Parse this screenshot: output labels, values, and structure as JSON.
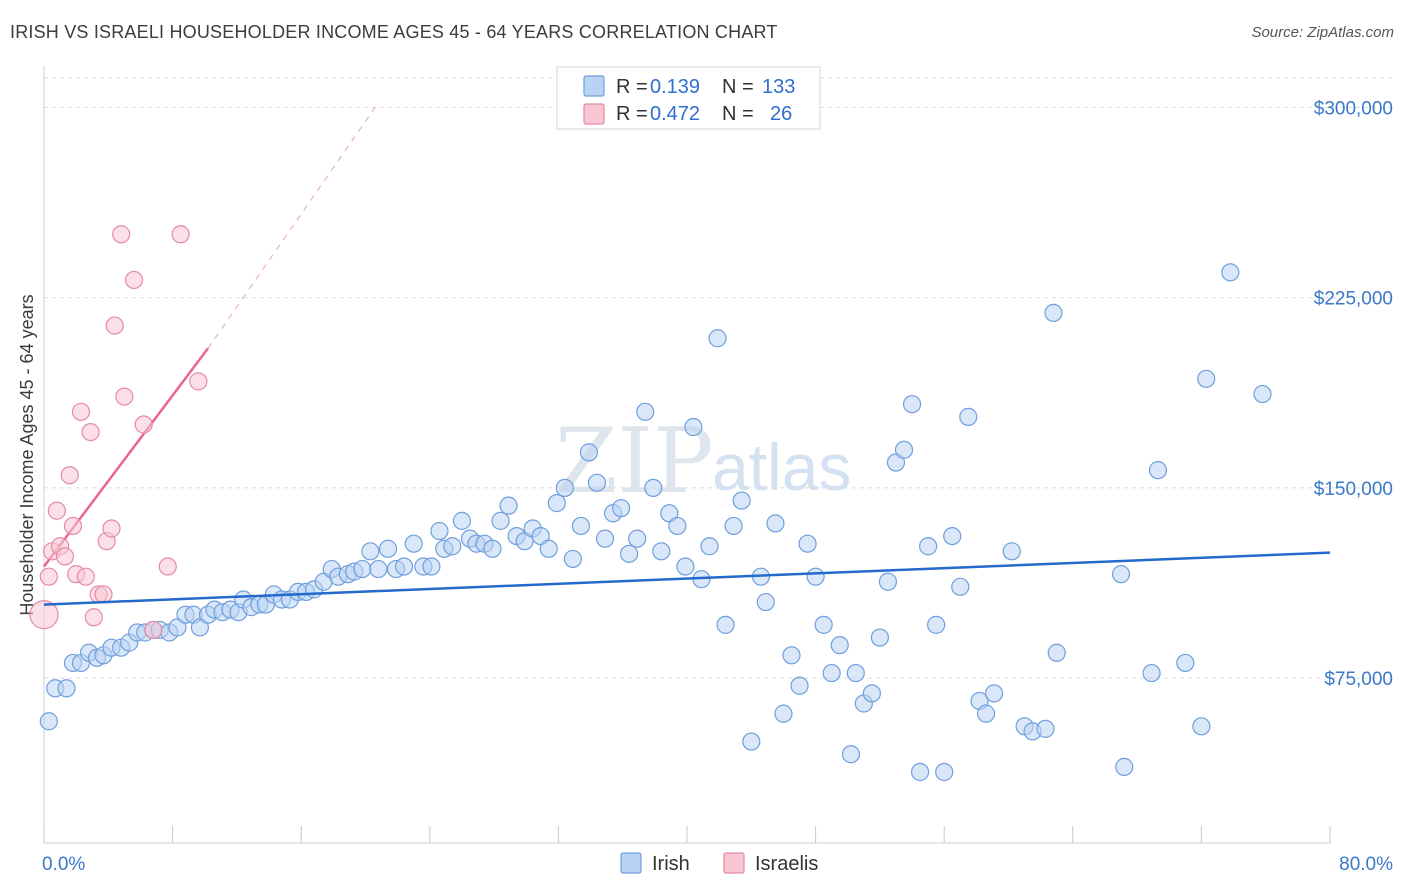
{
  "title": "IRISH VS ISRAELI HOUSEHOLDER INCOME AGES 45 - 64 YEARS CORRELATION CHART",
  "source": "Source: ZipAtlas.com",
  "watermark": {
    "part1": "ZIP",
    "part2": "atlas"
  },
  "colors": {
    "irish_fill": "#b9d3f2",
    "irish_stroke": "#6f9fdd",
    "irish_line": "#2469cc",
    "israeli_fill": "#f8c6d3",
    "israeli_stroke": "#e58aa6",
    "israeli_line": "#e8668f",
    "tick_text": "#3a78c9",
    "grid": "#dcdcdc"
  },
  "legend": {
    "rows": [
      {
        "r_label": "R =",
        "r_value": "0.139",
        "n_label": "N =",
        "n_value": "133"
      },
      {
        "r_label": "R =",
        "r_value": "0.472",
        "n_label": "N =",
        "n_value": "26"
      }
    ]
  },
  "bottom_legend": [
    "Irish",
    "Israelis"
  ],
  "chart_data": {
    "type": "scatter",
    "title": "IRISH VS ISRAELI HOUSEHOLDER INCOME AGES 45 - 64 YEARS CORRELATION CHART",
    "xlabel": "",
    "ylabel": "Householder Income Ages 45 - 64 years",
    "xlim": [
      0,
      80
    ],
    "ylim": [
      10000,
      312000
    ],
    "x_tick_labels": [
      "0.0%",
      "80.0%"
    ],
    "y_ticks": [
      75000,
      150000,
      225000,
      300000
    ],
    "y_tick_labels": [
      "$75,000",
      "$150,000",
      "$225,000",
      "$300,000"
    ],
    "grid": true,
    "legend_position": "top-center",
    "series": [
      {
        "name": "Irish",
        "trend": {
          "x": [
            0,
            80
          ],
          "y": [
            104000,
            124500
          ]
        },
        "points": [
          [
            0.3,
            58000
          ],
          [
            0.7,
            71000
          ],
          [
            1.4,
            71000
          ],
          [
            1.8,
            81000
          ],
          [
            2.3,
            81000
          ],
          [
            2.8,
            85000
          ],
          [
            3.3,
            83000
          ],
          [
            3.7,
            84000
          ],
          [
            4.2,
            87000
          ],
          [
            4.8,
            87000
          ],
          [
            5.3,
            89000
          ],
          [
            5.8,
            93000
          ],
          [
            6.3,
            93000
          ],
          [
            6.8,
            94000
          ],
          [
            7.2,
            94000
          ],
          [
            7.8,
            93000
          ],
          [
            8.3,
            95000
          ],
          [
            8.8,
            100000
          ],
          [
            9.3,
            100000
          ],
          [
            9.7,
            95000
          ],
          [
            10.2,
            100000
          ],
          [
            10.6,
            102000
          ],
          [
            11.1,
            101000
          ],
          [
            11.6,
            102000
          ],
          [
            12.1,
            101000
          ],
          [
            12.4,
            106000
          ],
          [
            12.9,
            103000
          ],
          [
            13.4,
            104000
          ],
          [
            13.8,
            104000
          ],
          [
            14.3,
            108000
          ],
          [
            14.8,
            106000
          ],
          [
            15.3,
            106000
          ],
          [
            15.8,
            109000
          ],
          [
            16.3,
            109000
          ],
          [
            16.8,
            110000
          ],
          [
            17.4,
            113000
          ],
          [
            17.9,
            118000
          ],
          [
            18.3,
            115000
          ],
          [
            18.9,
            116000
          ],
          [
            19.3,
            117000
          ],
          [
            19.8,
            118000
          ],
          [
            20.3,
            125000
          ],
          [
            20.8,
            118000
          ],
          [
            21.4,
            126000
          ],
          [
            21.9,
            118000
          ],
          [
            22.4,
            119000
          ],
          [
            23.0,
            128000
          ],
          [
            23.6,
            119000
          ],
          [
            24.1,
            119000
          ],
          [
            24.6,
            133000
          ],
          [
            24.9,
            126000
          ],
          [
            25.4,
            127000
          ],
          [
            26.0,
            137000
          ],
          [
            26.5,
            130000
          ],
          [
            26.9,
            128000
          ],
          [
            27.4,
            128000
          ],
          [
            27.9,
            126000
          ],
          [
            28.4,
            137000
          ],
          [
            28.9,
            143000
          ],
          [
            29.4,
            131000
          ],
          [
            29.9,
            129000
          ],
          [
            30.4,
            134000
          ],
          [
            30.9,
            131000
          ],
          [
            31.4,
            126000
          ],
          [
            31.9,
            144000
          ],
          [
            32.4,
            150000
          ],
          [
            32.9,
            122000
          ],
          [
            33.4,
            135000
          ],
          [
            33.9,
            164000
          ],
          [
            34.4,
            152000
          ],
          [
            34.9,
            130000
          ],
          [
            35.4,
            140000
          ],
          [
            35.9,
            142000
          ],
          [
            36.4,
            124000
          ],
          [
            36.9,
            130000
          ],
          [
            37.4,
            180000
          ],
          [
            37.9,
            150000
          ],
          [
            38.4,
            125000
          ],
          [
            38.9,
            140000
          ],
          [
            39.4,
            135000
          ],
          [
            39.9,
            119000
          ],
          [
            40.4,
            174000
          ],
          [
            40.9,
            114000
          ],
          [
            41.4,
            127000
          ],
          [
            41.9,
            209000
          ],
          [
            42.4,
            96000
          ],
          [
            42.9,
            135000
          ],
          [
            43.4,
            145000
          ],
          [
            44.0,
            50000
          ],
          [
            44.6,
            115000
          ],
          [
            44.9,
            105000
          ],
          [
            45.5,
            136000
          ],
          [
            46.0,
            61000
          ],
          [
            46.5,
            84000
          ],
          [
            47.0,
            72000
          ],
          [
            47.5,
            128000
          ],
          [
            48.0,
            115000
          ],
          [
            48.5,
            96000
          ],
          [
            49.0,
            77000
          ],
          [
            49.5,
            88000
          ],
          [
            50.2,
            45000
          ],
          [
            50.5,
            77000
          ],
          [
            51.0,
            65000
          ],
          [
            51.5,
            69000
          ],
          [
            52.0,
            91000
          ],
          [
            52.5,
            113000
          ],
          [
            53.0,
            160000
          ],
          [
            53.5,
            165000
          ],
          [
            54.0,
            183000
          ],
          [
            54.5,
            38000
          ],
          [
            55.0,
            127000
          ],
          [
            55.5,
            96000
          ],
          [
            56.0,
            38000
          ],
          [
            56.5,
            131000
          ],
          [
            57.0,
            111000
          ],
          [
            57.5,
            178000
          ],
          [
            58.2,
            66000
          ],
          [
            58.6,
            61000
          ],
          [
            59.1,
            69000
          ],
          [
            60.2,
            125000
          ],
          [
            61.0,
            56000
          ],
          [
            61.5,
            54000
          ],
          [
            62.3,
            55000
          ],
          [
            62.8,
            219000
          ],
          [
            63.0,
            85000
          ],
          [
            67.0,
            116000
          ],
          [
            67.2,
            40000
          ],
          [
            68.9,
            77000
          ],
          [
            69.3,
            157000
          ],
          [
            71.0,
            81000
          ],
          [
            72.0,
            56000
          ],
          [
            72.3,
            193000
          ],
          [
            73.8,
            235000
          ],
          [
            75.8,
            187000
          ]
        ]
      },
      {
        "name": "Israelis",
        "trend": {
          "x": [
            0,
            10.2
          ],
          "y": [
            119000,
            205000
          ]
        },
        "trend_dashed": {
          "x": [
            10.2,
            20.6
          ],
          "y": [
            205000,
            300000
          ]
        },
        "points": [
          [
            0,
            100000
          ],
          [
            0.3,
            115000
          ],
          [
            0.5,
            125000
          ],
          [
            0.8,
            141000
          ],
          [
            1.0,
            127000
          ],
          [
            1.3,
            123000
          ],
          [
            1.6,
            155000
          ],
          [
            1.8,
            135000
          ],
          [
            2.0,
            116000
          ],
          [
            2.3,
            180000
          ],
          [
            2.6,
            115000
          ],
          [
            2.9,
            172000
          ],
          [
            3.1,
            99000
          ],
          [
            3.4,
            108000
          ],
          [
            3.7,
            108000
          ],
          [
            3.9,
            129000
          ],
          [
            4.2,
            134000
          ],
          [
            4.4,
            214000
          ],
          [
            4.8,
            250000
          ],
          [
            5.0,
            186000
          ],
          [
            5.6,
            232000
          ],
          [
            6.2,
            175000
          ],
          [
            6.8,
            94000
          ],
          [
            7.7,
            119000
          ],
          [
            8.5,
            250000
          ],
          [
            9.6,
            192000
          ]
        ]
      }
    ]
  }
}
